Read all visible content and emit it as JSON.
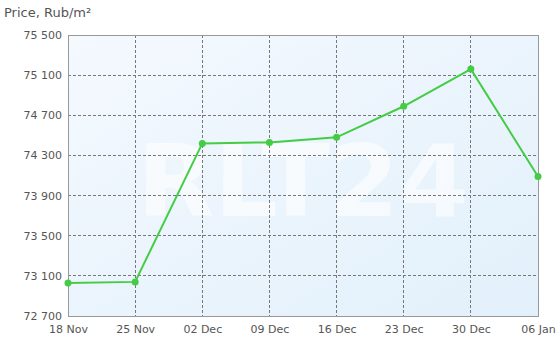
{
  "chart_data": {
    "type": "line",
    "y_label": "Price, Rub/m²",
    "annotations": [
      "RLT24"
    ],
    "categories": [
      "18 Nov",
      "25 Nov",
      "02 Dec",
      "09 Dec",
      "16 Dec",
      "23 Dec",
      "30 Dec",
      "06 Jan"
    ],
    "values": [
      73030,
      73040,
      74420,
      74430,
      74480,
      74790,
      75160,
      74090
    ],
    "color": "#44cc44",
    "marker": "circle",
    "ylim": [
      72700,
      75500
    ],
    "yticks": [
      {
        "value": 72700,
        "label": "72 700"
      },
      {
        "value": 73100,
        "label": "73 100"
      },
      {
        "value": 73500,
        "label": "73 500"
      },
      {
        "value": 73900,
        "label": "73 900"
      },
      {
        "value": 74300,
        "label": "74 300"
      },
      {
        "value": 74700,
        "label": "74 700"
      },
      {
        "value": 75100,
        "label": "75 100"
      },
      {
        "value": 75500,
        "label": "75 500"
      }
    ],
    "grid": true
  }
}
